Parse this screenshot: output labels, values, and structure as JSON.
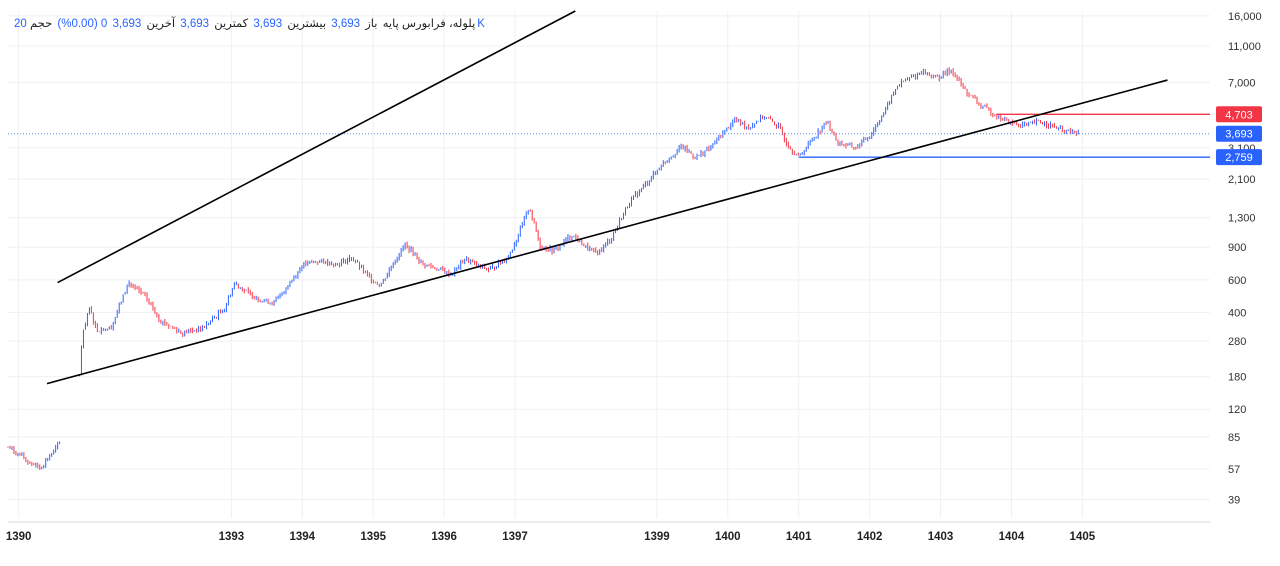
{
  "legend": {
    "volume_value": "20K",
    "volume_label": "حجم",
    "change": "0 (0.00%)",
    "last_value": "3,693",
    "last_label": "آخرین",
    "low_value": "3,693",
    "low_label": "کمترین",
    "high_value": "3,693",
    "high_label": "بیشترین",
    "open_value": "3,693",
    "open_label": "باز",
    "symbol": "پلوله، فرابورس پایه"
  },
  "colors": {
    "up": "#2962ff",
    "down": "#f23645",
    "trendline": "#000000",
    "grid": "#eef0f3",
    "current_line": "#5b8def"
  },
  "chart_data": {
    "type": "candlestick",
    "title": "پلوله، فرابورس پایه",
    "y_scale": "log",
    "ylim": [
      31,
      17000
    ],
    "y_ticks": [
      39,
      57,
      85,
      120,
      180,
      280,
      400,
      600,
      900,
      1300,
      2100,
      3100,
      7000,
      11000,
      16000
    ],
    "y_tick_labels": [
      "39",
      "57",
      "85",
      "120",
      "180",
      "280",
      "400",
      "600",
      "900",
      "1,300",
      "2,100",
      "3,100",
      "7,000",
      "11,000",
      "16,000"
    ],
    "x_ticks": [
      1390,
      1393,
      1394,
      1395,
      1396,
      1397,
      1399,
      1400,
      1401,
      1402,
      1403,
      1404,
      1405
    ],
    "x_tick_labels": [
      "1390",
      "1393",
      "1394",
      "1395",
      "1396",
      "1397",
      "1399",
      "1400",
      "1401",
      "1402",
      "1403",
      "1404",
      "1405"
    ],
    "x_range": [
      1389.85,
      1406.8
    ],
    "price_path": [
      [
        1389.85,
        75
      ],
      [
        1390.1,
        64
      ],
      [
        1390.3,
        58
      ],
      [
        1390.45,
        68
      ],
      [
        1390.6,
        80
      ],
      [
        1390.85,
        170
      ],
      [
        1390.9,
        300
      ],
      [
        1391.0,
        420
      ],
      [
        1391.1,
        320
      ],
      [
        1391.3,
        330
      ],
      [
        1391.55,
        580
      ],
      [
        1391.8,
        480
      ],
      [
        1392.0,
        360
      ],
      [
        1392.3,
        310
      ],
      [
        1392.6,
        330
      ],
      [
        1392.9,
        420
      ],
      [
        1393.05,
        580
      ],
      [
        1393.2,
        520
      ],
      [
        1393.4,
        470
      ],
      [
        1393.6,
        450
      ],
      [
        1393.8,
        560
      ],
      [
        1394.0,
        720
      ],
      [
        1394.2,
        760
      ],
      [
        1394.5,
        730
      ],
      [
        1394.7,
        790
      ],
      [
        1394.9,
        640
      ],
      [
        1395.1,
        560
      ],
      [
        1395.3,
        760
      ],
      [
        1395.45,
        930
      ],
      [
        1395.7,
        730
      ],
      [
        1395.9,
        690
      ],
      [
        1396.1,
        640
      ],
      [
        1396.3,
        780
      ],
      [
        1396.45,
        720
      ],
      [
        1396.65,
        680
      ],
      [
        1396.9,
        800
      ],
      [
        1397.05,
        1050
      ],
      [
        1397.2,
        1500
      ],
      [
        1397.35,
        920
      ],
      [
        1397.55,
        860
      ],
      [
        1397.8,
        1050
      ],
      [
        1398.0,
        900
      ],
      [
        1398.15,
        830
      ],
      [
        1398.35,
        1000
      ],
      [
        1398.6,
        1550
      ],
      [
        1398.9,
        2100
      ],
      [
        1399.1,
        2600
      ],
      [
        1399.35,
        3150
      ],
      [
        1399.55,
        2750
      ],
      [
        1399.75,
        3100
      ],
      [
        1399.95,
        3800
      ],
      [
        1400.1,
        4400
      ],
      [
        1400.3,
        4000
      ],
      [
        1400.5,
        4600
      ],
      [
        1400.7,
        4100
      ],
      [
        1400.85,
        3200
      ],
      [
        1401.0,
        2759
      ],
      [
        1401.2,
        3500
      ],
      [
        1401.4,
        4300
      ],
      [
        1401.55,
        3300
      ],
      [
        1401.8,
        3100
      ],
      [
        1402.0,
        3600
      ],
      [
        1402.2,
        4800
      ],
      [
        1402.4,
        6800
      ],
      [
        1402.55,
        7300
      ],
      [
        1402.75,
        8000
      ],
      [
        1402.95,
        7400
      ],
      [
        1403.15,
        8200
      ],
      [
        1403.35,
        6300
      ],
      [
        1403.55,
        5300
      ],
      [
        1403.8,
        4600
      ],
      [
        1404.0,
        4200
      ],
      [
        1404.2,
        4100
      ],
      [
        1404.4,
        4300
      ],
      [
        1404.55,
        4100
      ],
      [
        1404.75,
        3800
      ],
      [
        1404.95,
        3693
      ]
    ],
    "trendlines": [
      {
        "name": "upper-channel",
        "from": [
          1390.55,
          580
        ],
        "to": [
          1397.85,
          17000
        ]
      },
      {
        "name": "lower-channel",
        "from": [
          1390.4,
          165
        ],
        "to": [
          1406.2,
          7200
        ]
      }
    ],
    "horizontal_levels": [
      {
        "name": "resistance",
        "value": 4703,
        "label": "4,703",
        "from_x": 1403.8
      },
      {
        "name": "support",
        "value": 2759,
        "label": "2,759",
        "from_x": 1401.0
      },
      {
        "name": "current",
        "value": 3693,
        "label": "3,693",
        "from_x": 1389.85
      }
    ],
    "extra_price_label": "3,100"
  }
}
